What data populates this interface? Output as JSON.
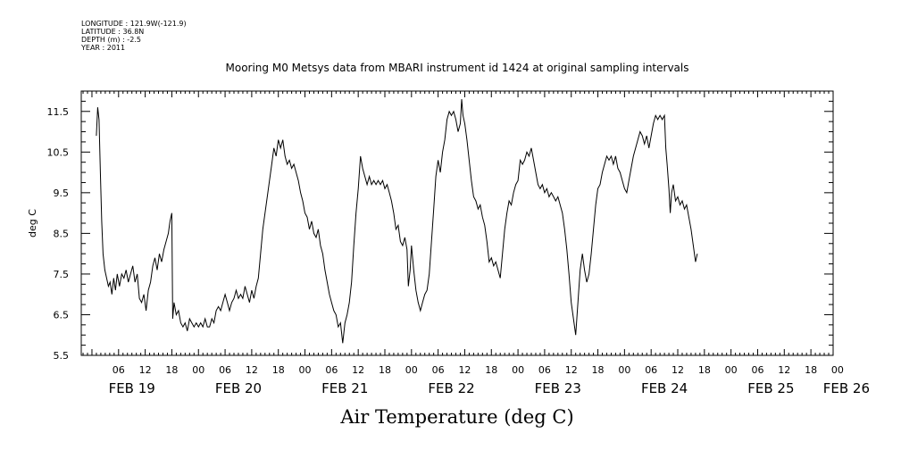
{
  "header": {
    "longitude": "LONGITUDE : 121.9W(-121.9)",
    "latitude": "LATITUDE : 36.8N",
    "depth": "DEPTH (m) : -2.5",
    "year": "YEAR : 2011"
  },
  "chart_data": {
    "type": "line",
    "title": "Mooring M0 Metsys data from MBARI instrument id 1424 at original sampling intervals",
    "ylabel": "deg C",
    "xlabel": "Air Temperature (deg C)",
    "ylim": [
      5.5,
      12.0
    ],
    "yticks": [
      5.5,
      6.5,
      7.5,
      8.5,
      9.5,
      10.5,
      11.5
    ],
    "ytick_labels": [
      "5.5",
      "6.5",
      "7.5",
      "8.5",
      "9.5",
      "10.5",
      "11.5"
    ],
    "x_unit": "hours since 2011-02-18 23:00",
    "xlim": [
      0,
      168
    ],
    "hour_ticks": [
      {
        "x": 7,
        "label": "06"
      },
      {
        "x": 13,
        "label": "12"
      },
      {
        "x": 19,
        "label": "18"
      },
      {
        "x": 25,
        "label": "00"
      },
      {
        "x": 31,
        "label": "06"
      },
      {
        "x": 37,
        "label": "12"
      },
      {
        "x": 43,
        "label": "18"
      },
      {
        "x": 49,
        "label": "00"
      },
      {
        "x": 55,
        "label": "06"
      },
      {
        "x": 61,
        "label": "12"
      },
      {
        "x": 67,
        "label": "18"
      },
      {
        "x": 73,
        "label": "00"
      },
      {
        "x": 79,
        "label": "06"
      },
      {
        "x": 85,
        "label": "12"
      },
      {
        "x": 91,
        "label": "18"
      },
      {
        "x": 97,
        "label": "00"
      },
      {
        "x": 103,
        "label": "06"
      },
      {
        "x": 109,
        "label": "12"
      },
      {
        "x": 115,
        "label": "18"
      },
      {
        "x": 121,
        "label": "00"
      },
      {
        "x": 127,
        "label": "06"
      },
      {
        "x": 133,
        "label": "12"
      },
      {
        "x": 139,
        "label": "18"
      },
      {
        "x": 145,
        "label": "00"
      },
      {
        "x": 151,
        "label": "06"
      },
      {
        "x": 157,
        "label": "12"
      },
      {
        "x": 163,
        "label": "18"
      },
      {
        "x": 169,
        "label": "00"
      }
    ],
    "date_labels": [
      {
        "x": 10,
        "label": "FEB 19"
      },
      {
        "x": 34,
        "label": "FEB 20"
      },
      {
        "x": 58,
        "label": "FEB 21"
      },
      {
        "x": 82,
        "label": "FEB 22"
      },
      {
        "x": 106,
        "label": "FEB 23"
      },
      {
        "x": 130,
        "label": "FEB 24"
      },
      {
        "x": 154,
        "label": "FEB 25"
      },
      {
        "x": 171,
        "label": "FEB 26"
      }
    ],
    "series": [
      {
        "color": "#000000",
        "points": [
          [
            2.0,
            10.9
          ],
          [
            2.3,
            11.6
          ],
          [
            2.6,
            11.3
          ],
          [
            2.9,
            10.0
          ],
          [
            3.2,
            8.8
          ],
          [
            3.5,
            8.0
          ],
          [
            3.9,
            7.6
          ],
          [
            4.3,
            7.4
          ],
          [
            4.7,
            7.2
          ],
          [
            5.1,
            7.3
          ],
          [
            5.5,
            7.0
          ],
          [
            5.9,
            7.4
          ],
          [
            6.3,
            7.1
          ],
          [
            6.7,
            7.5
          ],
          [
            7.2,
            7.2
          ],
          [
            7.7,
            7.5
          ],
          [
            8.2,
            7.4
          ],
          [
            8.7,
            7.6
          ],
          [
            9.2,
            7.3
          ],
          [
            9.7,
            7.5
          ],
          [
            10.2,
            7.7
          ],
          [
            10.7,
            7.3
          ],
          [
            11.2,
            7.5
          ],
          [
            11.7,
            6.9
          ],
          [
            12.2,
            6.8
          ],
          [
            12.7,
            7.0
          ],
          [
            13.2,
            6.6
          ],
          [
            13.7,
            7.1
          ],
          [
            14.2,
            7.3
          ],
          [
            14.7,
            7.7
          ],
          [
            15.2,
            7.9
          ],
          [
            15.7,
            7.6
          ],
          [
            16.2,
            8.0
          ],
          [
            16.7,
            7.8
          ],
          [
            17.2,
            8.1
          ],
          [
            17.7,
            8.3
          ],
          [
            18.2,
            8.5
          ],
          [
            18.6,
            8.8
          ],
          [
            19.0,
            9.0
          ],
          [
            19.2,
            6.4
          ],
          [
            19.5,
            6.8
          ],
          [
            20.0,
            6.5
          ],
          [
            20.5,
            6.6
          ],
          [
            21.0,
            6.3
          ],
          [
            21.5,
            6.2
          ],
          [
            22.0,
            6.3
          ],
          [
            22.5,
            6.1
          ],
          [
            23.0,
            6.4
          ],
          [
            23.5,
            6.3
          ],
          [
            24.0,
            6.2
          ],
          [
            24.5,
            6.3
          ],
          [
            25.0,
            6.2
          ],
          [
            25.5,
            6.3
          ],
          [
            26.0,
            6.2
          ],
          [
            26.5,
            6.4
          ],
          [
            27.0,
            6.2
          ],
          [
            27.5,
            6.2
          ],
          [
            28.0,
            6.4
          ],
          [
            28.5,
            6.3
          ],
          [
            29.0,
            6.6
          ],
          [
            29.5,
            6.7
          ],
          [
            30.0,
            6.6
          ],
          [
            30.5,
            6.8
          ],
          [
            31.0,
            7.0
          ],
          [
            31.5,
            6.8
          ],
          [
            32.0,
            6.6
          ],
          [
            32.5,
            6.8
          ],
          [
            33.0,
            6.9
          ],
          [
            33.5,
            7.1
          ],
          [
            34.0,
            6.9
          ],
          [
            34.5,
            7.0
          ],
          [
            35.0,
            6.9
          ],
          [
            35.5,
            7.2
          ],
          [
            36.0,
            7.0
          ],
          [
            36.5,
            6.8
          ],
          [
            37.0,
            7.1
          ],
          [
            37.5,
            6.9
          ],
          [
            38.0,
            7.2
          ],
          [
            38.5,
            7.4
          ],
          [
            39.0,
            8.0
          ],
          [
            39.5,
            8.6
          ],
          [
            40.0,
            9.0
          ],
          [
            40.5,
            9.4
          ],
          [
            41.0,
            9.8
          ],
          [
            41.5,
            10.2
          ],
          [
            42.0,
            10.6
          ],
          [
            42.5,
            10.4
          ],
          [
            43.0,
            10.8
          ],
          [
            43.5,
            10.6
          ],
          [
            44.0,
            10.8
          ],
          [
            44.5,
            10.4
          ],
          [
            45.0,
            10.2
          ],
          [
            45.5,
            10.3
          ],
          [
            46.0,
            10.1
          ],
          [
            46.5,
            10.2
          ],
          [
            47.0,
            10.0
          ],
          [
            47.5,
            9.8
          ],
          [
            48.0,
            9.5
          ],
          [
            48.5,
            9.3
          ],
          [
            49.0,
            9.0
          ],
          [
            49.5,
            8.9
          ],
          [
            50.0,
            8.6
          ],
          [
            50.5,
            8.8
          ],
          [
            51.0,
            8.5
          ],
          [
            51.5,
            8.4
          ],
          [
            52.0,
            8.6
          ],
          [
            52.5,
            8.2
          ],
          [
            53.0,
            8.0
          ],
          [
            53.5,
            7.6
          ],
          [
            54.0,
            7.3
          ],
          [
            54.5,
            7.0
          ],
          [
            55.0,
            6.8
          ],
          [
            55.5,
            6.6
          ],
          [
            56.0,
            6.5
          ],
          [
            56.5,
            6.2
          ],
          [
            57.0,
            6.3
          ],
          [
            57.5,
            5.8
          ],
          [
            58.0,
            6.3
          ],
          [
            58.5,
            6.5
          ],
          [
            59.0,
            6.8
          ],
          [
            59.5,
            7.3
          ],
          [
            60.0,
            8.2
          ],
          [
            60.5,
            9.0
          ],
          [
            61.0,
            9.6
          ],
          [
            61.5,
            10.4
          ],
          [
            62.0,
            10.1
          ],
          [
            62.5,
            9.9
          ],
          [
            63.0,
            9.7
          ],
          [
            63.5,
            9.9
          ],
          [
            64.0,
            9.7
          ],
          [
            64.5,
            9.8
          ],
          [
            65.0,
            9.7
          ],
          [
            65.5,
            9.8
          ],
          [
            66.0,
            9.7
          ],
          [
            66.5,
            9.8
          ],
          [
            67.0,
            9.6
          ],
          [
            67.5,
            9.7
          ],
          [
            68.0,
            9.5
          ],
          [
            68.5,
            9.3
          ],
          [
            69.0,
            9.0
          ],
          [
            69.5,
            8.6
          ],
          [
            70.0,
            8.7
          ],
          [
            70.5,
            8.3
          ],
          [
            71.0,
            8.2
          ],
          [
            71.5,
            8.4
          ],
          [
            72.0,
            8.1
          ],
          [
            72.3,
            7.2
          ],
          [
            72.7,
            7.6
          ],
          [
            73.0,
            8.2
          ],
          [
            73.5,
            7.6
          ],
          [
            74.0,
            7.1
          ],
          [
            74.5,
            6.8
          ],
          [
            75.0,
            6.6
          ],
          [
            75.5,
            6.8
          ],
          [
            76.0,
            7.0
          ],
          [
            76.5,
            7.1
          ],
          [
            77.0,
            7.5
          ],
          [
            77.5,
            8.3
          ],
          [
            78.0,
            9.1
          ],
          [
            78.5,
            9.9
          ],
          [
            79.0,
            10.3
          ],
          [
            79.5,
            10.0
          ],
          [
            80.0,
            10.5
          ],
          [
            80.5,
            10.8
          ],
          [
            81.0,
            11.3
          ],
          [
            81.5,
            11.5
          ],
          [
            82.0,
            11.4
          ],
          [
            82.5,
            11.5
          ],
          [
            83.0,
            11.3
          ],
          [
            83.5,
            11.0
          ],
          [
            84.0,
            11.2
          ],
          [
            84.3,
            11.8
          ],
          [
            84.6,
            11.4
          ],
          [
            85.0,
            11.2
          ],
          [
            85.5,
            10.8
          ],
          [
            86.0,
            10.3
          ],
          [
            86.5,
            9.8
          ],
          [
            87.0,
            9.4
          ],
          [
            87.5,
            9.3
          ],
          [
            88.0,
            9.1
          ],
          [
            88.5,
            9.2
          ],
          [
            89.0,
            8.9
          ],
          [
            89.5,
            8.7
          ],
          [
            90.0,
            8.3
          ],
          [
            90.5,
            7.8
          ],
          [
            91.0,
            7.9
          ],
          [
            91.5,
            7.7
          ],
          [
            92.0,
            7.8
          ],
          [
            92.5,
            7.6
          ],
          [
            93.0,
            7.4
          ],
          [
            93.5,
            8.0
          ],
          [
            94.0,
            8.6
          ],
          [
            94.5,
            9.0
          ],
          [
            95.0,
            9.3
          ],
          [
            95.5,
            9.2
          ],
          [
            96.0,
            9.5
          ],
          [
            96.5,
            9.7
          ],
          [
            97.0,
            9.8
          ],
          [
            97.5,
            10.3
          ],
          [
            98.0,
            10.2
          ],
          [
            98.5,
            10.3
          ],
          [
            99.0,
            10.5
          ],
          [
            99.5,
            10.4
          ],
          [
            100.0,
            10.6
          ],
          [
            100.5,
            10.3
          ],
          [
            101.0,
            10.0
          ],
          [
            101.5,
            9.7
          ],
          [
            102.0,
            9.6
          ],
          [
            102.5,
            9.7
          ],
          [
            103.0,
            9.5
          ],
          [
            103.5,
            9.6
          ],
          [
            104.0,
            9.4
          ],
          [
            104.5,
            9.5
          ],
          [
            105.0,
            9.4
          ],
          [
            105.5,
            9.3
          ],
          [
            106.0,
            9.4
          ],
          [
            106.5,
            9.2
          ],
          [
            107.0,
            9.0
          ],
          [
            107.5,
            8.6
          ],
          [
            108.0,
            8.1
          ],
          [
            108.5,
            7.5
          ],
          [
            109.0,
            6.8
          ],
          [
            109.5,
            6.4
          ],
          [
            110.0,
            6.0
          ],
          [
            110.5,
            6.8
          ],
          [
            111.0,
            7.6
          ],
          [
            111.5,
            8.0
          ],
          [
            112.0,
            7.6
          ],
          [
            112.5,
            7.3
          ],
          [
            113.0,
            7.5
          ],
          [
            113.5,
            8.0
          ],
          [
            114.0,
            8.6
          ],
          [
            114.5,
            9.2
          ],
          [
            115.0,
            9.6
          ],
          [
            115.5,
            9.7
          ],
          [
            116.0,
            10.0
          ],
          [
            116.5,
            10.2
          ],
          [
            117.0,
            10.4
          ],
          [
            117.5,
            10.3
          ],
          [
            118.0,
            10.4
          ],
          [
            118.5,
            10.2
          ],
          [
            119.0,
            10.4
          ],
          [
            119.5,
            10.1
          ],
          [
            120.0,
            10.0
          ],
          [
            120.5,
            9.8
          ],
          [
            121.0,
            9.6
          ],
          [
            121.5,
            9.5
          ],
          [
            122.0,
            9.8
          ],
          [
            122.5,
            10.1
          ],
          [
            123.0,
            10.4
          ],
          [
            123.5,
            10.6
          ],
          [
            124.0,
            10.8
          ],
          [
            124.5,
            11.0
          ],
          [
            125.0,
            10.9
          ],
          [
            125.5,
            10.7
          ],
          [
            126.0,
            10.9
          ],
          [
            126.5,
            10.6
          ],
          [
            127.0,
            10.9
          ],
          [
            127.5,
            11.2
          ],
          [
            128.0,
            11.4
          ],
          [
            128.5,
            11.3
          ],
          [
            129.0,
            11.4
          ],
          [
            129.5,
            11.3
          ],
          [
            130.0,
            11.4
          ],
          [
            130.3,
            10.6
          ],
          [
            130.6,
            10.2
          ],
          [
            131.0,
            9.6
          ],
          [
            131.3,
            9.0
          ],
          [
            131.6,
            9.5
          ],
          [
            132.0,
            9.7
          ],
          [
            132.5,
            9.3
          ],
          [
            133.0,
            9.4
          ],
          [
            133.5,
            9.2
          ],
          [
            134.0,
            9.3
          ],
          [
            134.5,
            9.1
          ],
          [
            135.0,
            9.2
          ],
          [
            135.5,
            8.9
          ],
          [
            136.0,
            8.6
          ],
          [
            136.5,
            8.2
          ],
          [
            137.0,
            7.8
          ],
          [
            137.4,
            8.0
          ]
        ]
      }
    ]
  }
}
